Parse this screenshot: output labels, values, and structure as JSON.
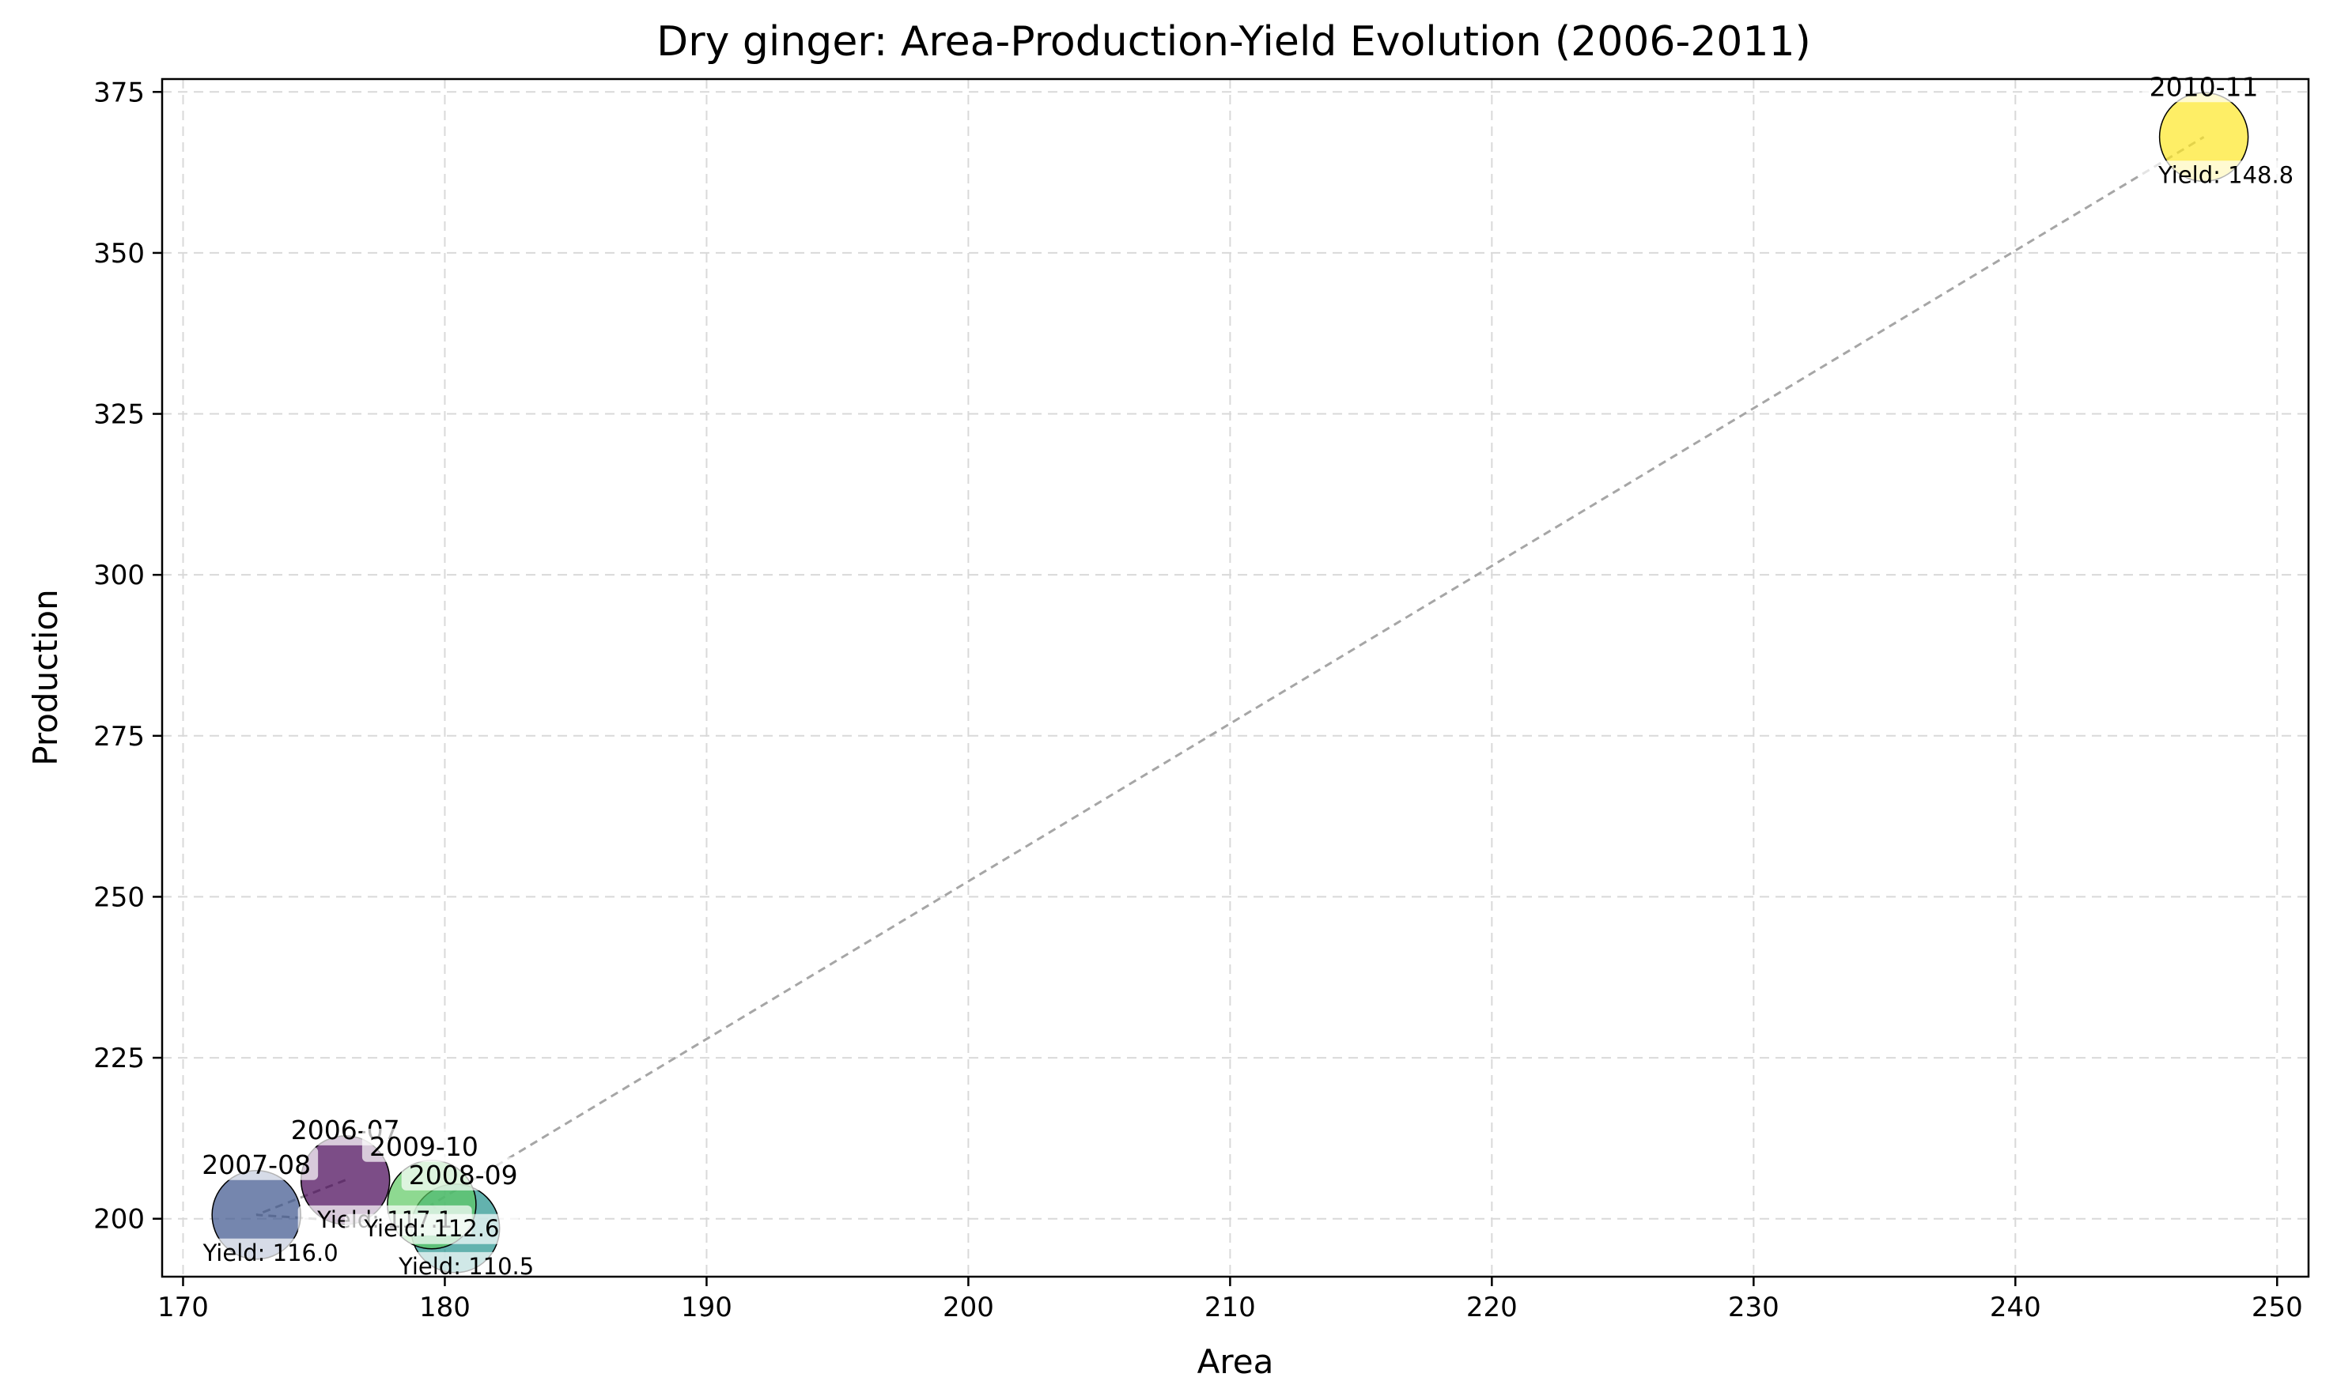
{
  "chart_data": {
    "type": "scatter",
    "title": "Dry ginger: Area-Production-Yield Evolution (2006-2011)",
    "xlabel": "Area",
    "ylabel": "Production",
    "xlim": [
      169.2,
      251.2
    ],
    "ylim": [
      191,
      377
    ],
    "xticks": [
      170,
      180,
      190,
      200,
      210,
      220,
      230,
      240,
      250
    ],
    "yticks": [
      200,
      225,
      250,
      275,
      300,
      325,
      350,
      375
    ],
    "grid": true,
    "trend_line": "dashed, connecting points in chronological order",
    "points": [
      {
        "label": "2006-07",
        "x": 176.2,
        "y": 206.0,
        "yield_text": "Yield: 117.1",
        "color": "#440154"
      },
      {
        "label": "2007-08",
        "x": 172.8,
        "y": 200.6,
        "yield_text": "Yield: 116.0",
        "color": "#3b528b"
      },
      {
        "label": "2008-09",
        "x": 180.4,
        "y": 198.5,
        "yield_text": "Yield: 110.5",
        "color": "#21918c"
      },
      {
        "label": "2009-10",
        "x": 179.5,
        "y": 202.2,
        "yield_text": "Yield: 112.6",
        "color": "#5ec962"
      },
      {
        "label": "2010-11",
        "x": 247.2,
        "y": 368.0,
        "yield_text": "Yield: 148.8",
        "color": "#fde725"
      }
    ]
  }
}
